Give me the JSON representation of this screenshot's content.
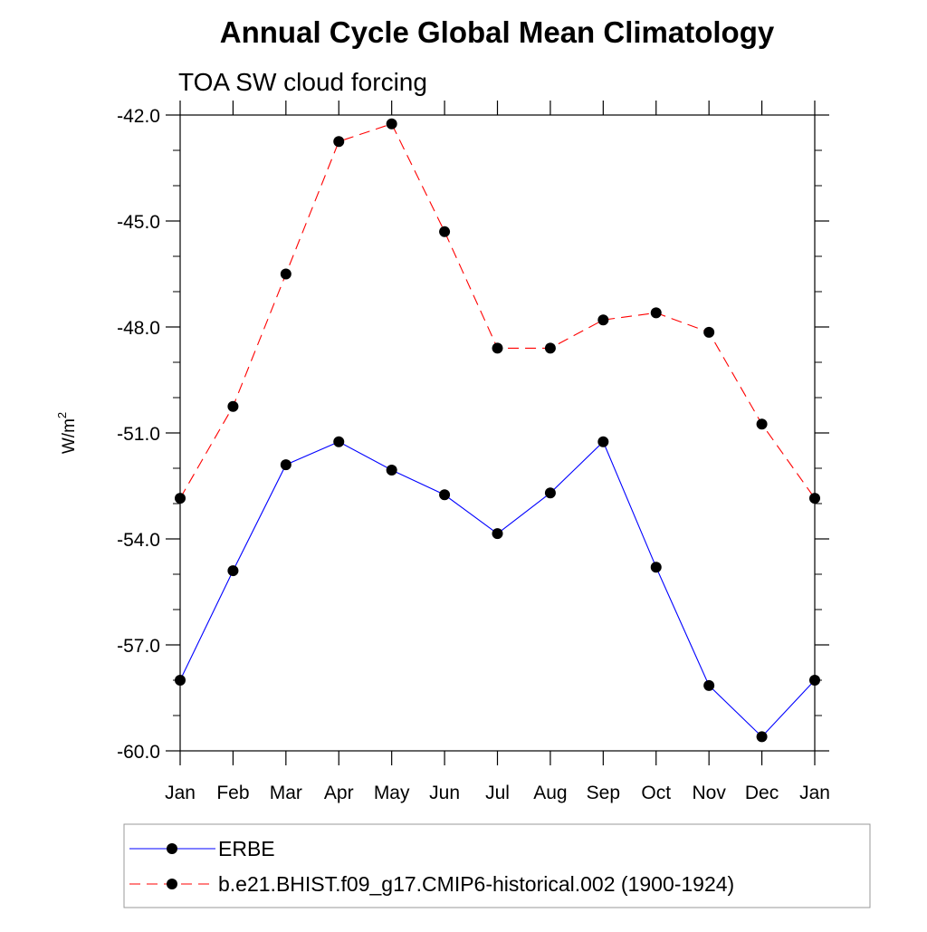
{
  "chart_data": {
    "type": "line",
    "title": "Annual Cycle Global Mean Climatology",
    "subtitle": "TOA SW cloud forcing",
    "xlabel": "",
    "ylabel": "W/m",
    "ylabel_superscript": "2",
    "categories": [
      "Jan",
      "Feb",
      "Mar",
      "Apr",
      "May",
      "Jun",
      "Jul",
      "Aug",
      "Sep",
      "Oct",
      "Nov",
      "Dec",
      "Jan"
    ],
    "ylim": [
      -60.0,
      -42.0
    ],
    "yticks": [
      "-42.0",
      "-45.0",
      "-48.0",
      "-51.0",
      "-54.0",
      "-57.0",
      "-60.0"
    ],
    "ytick_values": [
      -42,
      -45,
      -48,
      -51,
      -54,
      -57,
      -60
    ],
    "series": [
      {
        "name": "ERBE",
        "color": "#0000ff",
        "line_style": "solid",
        "marker": "filled-circle",
        "values": [
          -58.0,
          -54.9,
          -51.9,
          -51.25,
          -52.05,
          -52.75,
          -53.85,
          -52.7,
          -51.25,
          -54.8,
          -58.15,
          -59.6,
          -58.0
        ]
      },
      {
        "name": "b.e21.BHIST.f09_g17.CMIP6-historical.002 (1900-1924)",
        "color": "#ff0000",
        "line_style": "dashed",
        "marker": "filled-circle",
        "values": [
          -52.85,
          -50.25,
          -46.5,
          -42.75,
          -42.25,
          -45.3,
          -48.6,
          -48.6,
          -47.8,
          -47.6,
          -48.15,
          -50.75,
          -52.85
        ]
      }
    ],
    "grid": false,
    "legend_position": "bottom"
  }
}
